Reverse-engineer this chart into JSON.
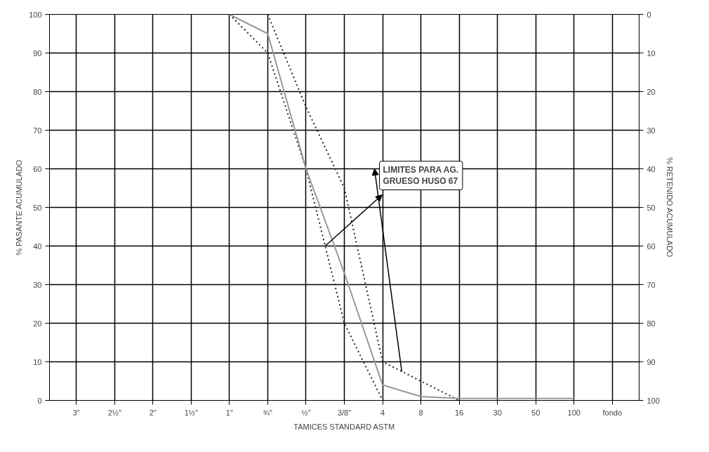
{
  "chart_data": {
    "type": "line",
    "xlabel": "TAMICES STANDARD ASTM",
    "ylabel": "% PASANTE ACUMULADO",
    "y2label": "% RETENIDO ACUMULADO",
    "categories": [
      "3\"",
      "2½\"",
      "2\"",
      "1½\"",
      "1\"",
      "¾\"",
      "½\"",
      "3/8\"",
      "4",
      "8",
      "16",
      "30",
      "50",
      "100",
      "fondo"
    ],
    "ylim": [
      0,
      100
    ],
    "yticks": [
      0,
      10,
      20,
      30,
      40,
      50,
      60,
      70,
      80,
      90,
      100
    ],
    "y2lim": [
      100,
      0
    ],
    "y2ticks": [
      0,
      10,
      20,
      30,
      40,
      50,
      60,
      70,
      80,
      90,
      100
    ],
    "grid": true,
    "marker": "none",
    "series": [
      {
        "color": "#222222",
        "line_style": "dotted",
        "values": [
          null,
          null,
          null,
          null,
          null,
          100,
          76,
          55,
          10,
          5,
          0,
          null,
          null,
          null,
          null
        ]
      },
      {
        "color": "#222222",
        "line_style": "dotted",
        "values": [
          null,
          null,
          null,
          null,
          100,
          90,
          60,
          20,
          0,
          null,
          null,
          null,
          null,
          null,
          null
        ]
      },
      {
        "color": "#999999",
        "line_style": "solid",
        "values": [
          null,
          null,
          null,
          null,
          100,
          95,
          60,
          33,
          4,
          1,
          0.5,
          0.5,
          0.5,
          0.5,
          null
        ]
      }
    ],
    "annotations": [
      "LIMITES PARA AG.\nGRUESO HUSO 67"
    ]
  }
}
